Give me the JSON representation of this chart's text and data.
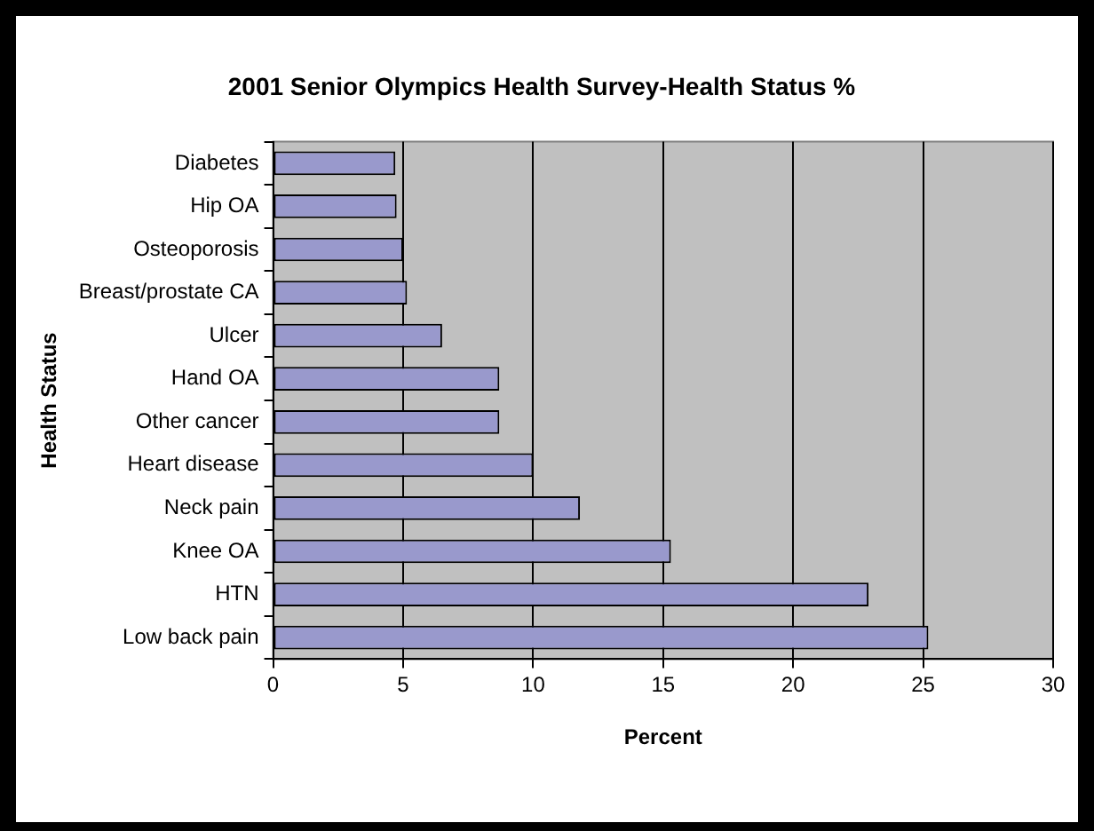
{
  "chart_data": {
    "type": "bar",
    "orientation": "horizontal",
    "title": "2001 Senior Olympics Health Survey-Health Status %",
    "xlabel": "Percent",
    "ylabel": "Health Status",
    "categories": [
      "Diabetes",
      "Hip OA",
      "Osteoporosis",
      "Breast/prostate CA",
      "Ulcer",
      "Hand OA",
      "Other cancer",
      "Heart disease",
      "Neck pain",
      "Knee OA",
      "HTN",
      "Low back pain"
    ],
    "values": [
      4.7,
      4.75,
      5.0,
      5.15,
      6.5,
      8.7,
      8.7,
      10,
      11.8,
      15.3,
      22.9,
      25.2
    ],
    "color": "#9999cc",
    "xlim": [
      0,
      30
    ],
    "xticks": [
      0,
      5,
      10,
      15,
      20,
      25,
      30
    ],
    "grid": "x",
    "legend": false
  }
}
